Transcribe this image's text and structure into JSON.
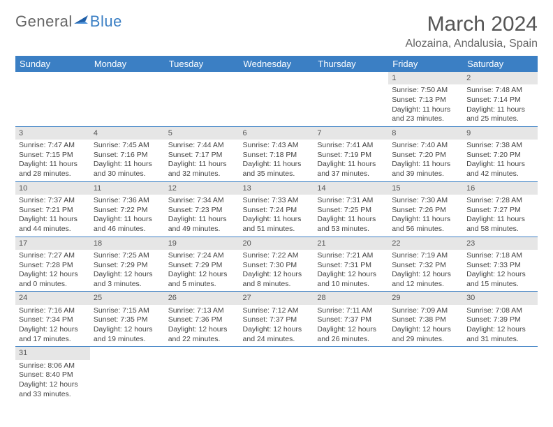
{
  "brand": {
    "general": "General",
    "blue": "Blue"
  },
  "title": "March 2024",
  "location": "Alozaina, Andalusia, Spain",
  "colors": {
    "accent": "#3b7fc4",
    "header_bg": "#3b7fc4",
    "daynum_bg": "#e6e6e6",
    "text": "#444444"
  },
  "weekdays": [
    "Sunday",
    "Monday",
    "Tuesday",
    "Wednesday",
    "Thursday",
    "Friday",
    "Saturday"
  ],
  "weeks": [
    [
      null,
      null,
      null,
      null,
      null,
      {
        "n": "1",
        "sr": "7:50 AM",
        "ss": "7:13 PM",
        "dl": "11 hours and 23 minutes."
      },
      {
        "n": "2",
        "sr": "7:48 AM",
        "ss": "7:14 PM",
        "dl": "11 hours and 25 minutes."
      }
    ],
    [
      {
        "n": "3",
        "sr": "7:47 AM",
        "ss": "7:15 PM",
        "dl": "11 hours and 28 minutes."
      },
      {
        "n": "4",
        "sr": "7:45 AM",
        "ss": "7:16 PM",
        "dl": "11 hours and 30 minutes."
      },
      {
        "n": "5",
        "sr": "7:44 AM",
        "ss": "7:17 PM",
        "dl": "11 hours and 32 minutes."
      },
      {
        "n": "6",
        "sr": "7:43 AM",
        "ss": "7:18 PM",
        "dl": "11 hours and 35 minutes."
      },
      {
        "n": "7",
        "sr": "7:41 AM",
        "ss": "7:19 PM",
        "dl": "11 hours and 37 minutes."
      },
      {
        "n": "8",
        "sr": "7:40 AM",
        "ss": "7:20 PM",
        "dl": "11 hours and 39 minutes."
      },
      {
        "n": "9",
        "sr": "7:38 AM",
        "ss": "7:20 PM",
        "dl": "11 hours and 42 minutes."
      }
    ],
    [
      {
        "n": "10",
        "sr": "7:37 AM",
        "ss": "7:21 PM",
        "dl": "11 hours and 44 minutes."
      },
      {
        "n": "11",
        "sr": "7:36 AM",
        "ss": "7:22 PM",
        "dl": "11 hours and 46 minutes."
      },
      {
        "n": "12",
        "sr": "7:34 AM",
        "ss": "7:23 PM",
        "dl": "11 hours and 49 minutes."
      },
      {
        "n": "13",
        "sr": "7:33 AM",
        "ss": "7:24 PM",
        "dl": "11 hours and 51 minutes."
      },
      {
        "n": "14",
        "sr": "7:31 AM",
        "ss": "7:25 PM",
        "dl": "11 hours and 53 minutes."
      },
      {
        "n": "15",
        "sr": "7:30 AM",
        "ss": "7:26 PM",
        "dl": "11 hours and 56 minutes."
      },
      {
        "n": "16",
        "sr": "7:28 AM",
        "ss": "7:27 PM",
        "dl": "11 hours and 58 minutes."
      }
    ],
    [
      {
        "n": "17",
        "sr": "7:27 AM",
        "ss": "7:28 PM",
        "dl": "12 hours and 0 minutes."
      },
      {
        "n": "18",
        "sr": "7:25 AM",
        "ss": "7:29 PM",
        "dl": "12 hours and 3 minutes."
      },
      {
        "n": "19",
        "sr": "7:24 AM",
        "ss": "7:29 PM",
        "dl": "12 hours and 5 minutes."
      },
      {
        "n": "20",
        "sr": "7:22 AM",
        "ss": "7:30 PM",
        "dl": "12 hours and 8 minutes."
      },
      {
        "n": "21",
        "sr": "7:21 AM",
        "ss": "7:31 PM",
        "dl": "12 hours and 10 minutes."
      },
      {
        "n": "22",
        "sr": "7:19 AM",
        "ss": "7:32 PM",
        "dl": "12 hours and 12 minutes."
      },
      {
        "n": "23",
        "sr": "7:18 AM",
        "ss": "7:33 PM",
        "dl": "12 hours and 15 minutes."
      }
    ],
    [
      {
        "n": "24",
        "sr": "7:16 AM",
        "ss": "7:34 PM",
        "dl": "12 hours and 17 minutes."
      },
      {
        "n": "25",
        "sr": "7:15 AM",
        "ss": "7:35 PM",
        "dl": "12 hours and 19 minutes."
      },
      {
        "n": "26",
        "sr": "7:13 AM",
        "ss": "7:36 PM",
        "dl": "12 hours and 22 minutes."
      },
      {
        "n": "27",
        "sr": "7:12 AM",
        "ss": "7:37 PM",
        "dl": "12 hours and 24 minutes."
      },
      {
        "n": "28",
        "sr": "7:11 AM",
        "ss": "7:37 PM",
        "dl": "12 hours and 26 minutes."
      },
      {
        "n": "29",
        "sr": "7:09 AM",
        "ss": "7:38 PM",
        "dl": "12 hours and 29 minutes."
      },
      {
        "n": "30",
        "sr": "7:08 AM",
        "ss": "7:39 PM",
        "dl": "12 hours and 31 minutes."
      }
    ],
    [
      {
        "n": "31",
        "sr": "8:06 AM",
        "ss": "8:40 PM",
        "dl": "12 hours and 33 minutes."
      },
      null,
      null,
      null,
      null,
      null,
      null
    ]
  ],
  "labels": {
    "sunrise": "Sunrise: ",
    "sunset": "Sunset: ",
    "daylight": "Daylight: "
  }
}
